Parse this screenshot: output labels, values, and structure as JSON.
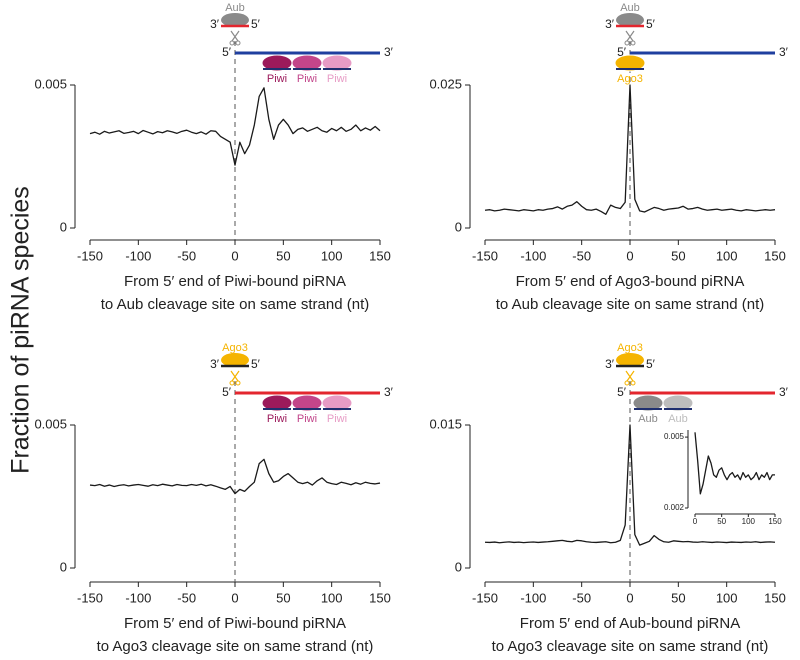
{
  "y_label": "Fraction of piRNA species",
  "chart_data": [
    {
      "type": "line",
      "color": "#1a1a1a",
      "xlabel": [
        "From 5′ end of Piwi-bound piRNA",
        "to Aub cleavage site on same strand (nt)"
      ],
      "diagram": {
        "guide": "Aub",
        "guide_color": "#8a8a8a",
        "guide_rna_color": "#e3262e",
        "guide_ends": [
          "3′",
          "5′"
        ],
        "target_ends": [
          "5′",
          "3′"
        ],
        "strand_color": "#1f3f9f",
        "bound": [
          "Piwi",
          "Piwi",
          "Piwi"
        ],
        "bound_colors": [
          "#9c1a5b",
          "#c2458a",
          "#e79bc5"
        ]
      },
      "x": [
        -150,
        -145,
        -140,
        -135,
        -130,
        -125,
        -120,
        -115,
        -110,
        -105,
        -100,
        -95,
        -90,
        -85,
        -80,
        -75,
        -70,
        -65,
        -60,
        -55,
        -50,
        -45,
        -40,
        -35,
        -30,
        -25,
        -20,
        -15,
        -10,
        -5,
        0,
        5,
        10,
        15,
        20,
        25,
        30,
        35,
        40,
        45,
        50,
        55,
        60,
        65,
        70,
        75,
        80,
        85,
        90,
        95,
        100,
        105,
        110,
        115,
        120,
        125,
        130,
        135,
        140,
        145,
        150
      ],
      "values": [
        0.0033,
        0.00335,
        0.00328,
        0.00338,
        0.00332,
        0.00336,
        0.0034,
        0.00331,
        0.00334,
        0.00338,
        0.0033,
        0.00341,
        0.00335,
        0.00329,
        0.00337,
        0.00333,
        0.0034,
        0.00336,
        0.00331,
        0.00338,
        0.00342,
        0.00335,
        0.0033,
        0.00336,
        0.00328,
        0.0034,
        0.00338,
        0.0032,
        0.0031,
        0.003,
        0.0022,
        0.003,
        0.0026,
        0.0029,
        0.0036,
        0.0046,
        0.0049,
        0.0038,
        0.0031,
        0.0036,
        0.0038,
        0.0036,
        0.0033,
        0.00345,
        0.0035,
        0.00338,
        0.00345,
        0.00352,
        0.0034,
        0.00335,
        0.00348,
        0.0034,
        0.00352,
        0.00338,
        0.00345,
        0.0036,
        0.0034,
        0.0035,
        0.00342,
        0.00355,
        0.0034
      ],
      "xlim": [
        -150,
        150
      ],
      "xticks": [
        -150,
        -100,
        -50,
        0,
        50,
        100,
        150
      ],
      "ylim": [
        0,
        0.005
      ],
      "yticks": [
        0,
        0.005
      ]
    },
    {
      "type": "line",
      "color": "#1a1a1a",
      "xlabel": [
        "From 5′ end of Ago3-bound piRNA",
        "to Aub cleavage site on same strand (nt)"
      ],
      "diagram": {
        "guide": "Aub",
        "guide_color": "#8a8a8a",
        "guide_rna_color": "#e3262e",
        "guide_ends": [
          "3′",
          "5′"
        ],
        "target_ends": [
          "5′",
          "3′"
        ],
        "strand_color": "#1f3f9f",
        "bound": [
          "Ago3"
        ],
        "bound_colors": [
          "#f5b400"
        ]
      },
      "x": [
        -150,
        -145,
        -140,
        -135,
        -130,
        -125,
        -120,
        -115,
        -110,
        -105,
        -100,
        -95,
        -90,
        -85,
        -80,
        -75,
        -70,
        -65,
        -60,
        -55,
        -50,
        -45,
        -40,
        -35,
        -30,
        -25,
        -20,
        -15,
        -10,
        -5,
        0,
        5,
        10,
        15,
        20,
        25,
        30,
        35,
        40,
        45,
        50,
        55,
        60,
        65,
        70,
        75,
        80,
        85,
        90,
        95,
        100,
        105,
        110,
        115,
        120,
        125,
        130,
        135,
        140,
        145,
        150
      ],
      "values": [
        0.0031,
        0.0032,
        0.003,
        0.0031,
        0.0033,
        0.0032,
        0.0031,
        0.003,
        0.0032,
        0.0031,
        0.003,
        0.0032,
        0.0031,
        0.0033,
        0.0034,
        0.0037,
        0.0033,
        0.0038,
        0.004,
        0.0046,
        0.0038,
        0.0032,
        0.0031,
        0.0033,
        0.0029,
        0.0024,
        0.004,
        0.0036,
        0.0034,
        0.0045,
        0.025,
        0.005,
        0.003,
        0.0028,
        0.0032,
        0.0036,
        0.0034,
        0.0031,
        0.0033,
        0.0034,
        0.0035,
        0.0038,
        0.0033,
        0.0034,
        0.0036,
        0.0033,
        0.0031,
        0.0032,
        0.0033,
        0.0031,
        0.0032,
        0.0033,
        0.0031,
        0.003,
        0.0032,
        0.0031,
        0.003,
        0.0031,
        0.0032,
        0.0031,
        0.0032
      ],
      "xlim": [
        -150,
        150
      ],
      "xticks": [
        -150,
        -100,
        -50,
        0,
        50,
        100,
        150
      ],
      "ylim": [
        0,
        0.025
      ],
      "yticks": [
        0,
        0.025
      ]
    },
    {
      "type": "line",
      "color": "#1a1a1a",
      "xlabel": [
        "From 5′ end of Piwi-bound piRNA",
        "to Ago3 cleavage site on same strand (nt)"
      ],
      "diagram": {
        "guide": "Ago3",
        "guide_color": "#f5b400",
        "guide_rna_color": "#222222",
        "guide_ends": [
          "3′",
          "5′"
        ],
        "target_ends": [
          "5′",
          "3′"
        ],
        "strand_color": "#e3262e",
        "bound": [
          "Piwi",
          "Piwi",
          "Piwi"
        ],
        "bound_colors": [
          "#9c1a5b",
          "#c2458a",
          "#e79bc5"
        ]
      },
      "x": [
        -150,
        -145,
        -140,
        -135,
        -130,
        -125,
        -120,
        -115,
        -110,
        -105,
        -100,
        -95,
        -90,
        -85,
        -80,
        -75,
        -70,
        -65,
        -60,
        -55,
        -50,
        -45,
        -40,
        -35,
        -30,
        -25,
        -20,
        -15,
        -10,
        -5,
        0,
        5,
        10,
        15,
        20,
        25,
        30,
        35,
        40,
        45,
        50,
        55,
        60,
        65,
        70,
        75,
        80,
        85,
        90,
        95,
        100,
        105,
        110,
        115,
        120,
        125,
        130,
        135,
        140,
        145,
        150
      ],
      "values": [
        0.0029,
        0.00288,
        0.00292,
        0.00286,
        0.0029,
        0.00285,
        0.00289,
        0.00291,
        0.00287,
        0.0029,
        0.00292,
        0.00289,
        0.00286,
        0.00291,
        0.00288,
        0.00293,
        0.0029,
        0.00287,
        0.00292,
        0.00289,
        0.00288,
        0.00292,
        0.00289,
        0.00293,
        0.00287,
        0.00291,
        0.00286,
        0.0028,
        0.00275,
        0.00285,
        0.0026,
        0.00275,
        0.00268,
        0.00285,
        0.003,
        0.00365,
        0.0038,
        0.0033,
        0.003,
        0.00305,
        0.0032,
        0.0033,
        0.00315,
        0.003,
        0.00295,
        0.003,
        0.0029,
        0.00305,
        0.00315,
        0.003,
        0.00295,
        0.00292,
        0.003,
        0.00296,
        0.00291,
        0.00298,
        0.00293,
        0.003,
        0.00296,
        0.00294,
        0.00297
      ],
      "xlim": [
        -150,
        150
      ],
      "xticks": [
        -150,
        -100,
        -50,
        0,
        50,
        100,
        150
      ],
      "ylim": [
        0,
        0.005
      ],
      "yticks": [
        0,
        0.005
      ]
    },
    {
      "type": "line",
      "color": "#1a1a1a",
      "xlabel": [
        "From 5′ end of Aub-bound piRNA",
        "to Ago3 cleavage site on same strand (nt)"
      ],
      "diagram": {
        "guide": "Ago3",
        "guide_color": "#f5b400",
        "guide_rna_color": "#222222",
        "guide_ends": [
          "3′",
          "5′"
        ],
        "target_ends": [
          "5′",
          "3′"
        ],
        "strand_color": "#e3262e",
        "bound": [
          "Aub",
          "Aub"
        ],
        "bound_colors": [
          "#8a8a8a",
          "#bdbdbd"
        ]
      },
      "x": [
        -150,
        -145,
        -140,
        -135,
        -130,
        -125,
        -120,
        -115,
        -110,
        -105,
        -100,
        -95,
        -90,
        -85,
        -80,
        -75,
        -70,
        -65,
        -60,
        -55,
        -50,
        -45,
        -40,
        -35,
        -30,
        -25,
        -20,
        -15,
        -10,
        -5,
        0,
        5,
        10,
        15,
        20,
        25,
        30,
        35,
        40,
        45,
        50,
        55,
        60,
        65,
        70,
        75,
        80,
        85,
        90,
        95,
        100,
        105,
        110,
        115,
        120,
        125,
        130,
        135,
        140,
        145,
        150
      ],
      "values": [
        0.0027,
        0.00268,
        0.00272,
        0.00265,
        0.0027,
        0.00274,
        0.00268,
        0.00271,
        0.00266,
        0.0027,
        0.00273,
        0.00268,
        0.00272,
        0.00275,
        0.0028,
        0.00285,
        0.0029,
        0.0028,
        0.00275,
        0.0029,
        0.00285,
        0.00275,
        0.0027,
        0.00268,
        0.00272,
        0.00275,
        0.00265,
        0.0027,
        0.0029,
        0.0045,
        0.015,
        0.0035,
        0.0024,
        0.0026,
        0.0028,
        0.0034,
        0.003,
        0.00275,
        0.0027,
        0.00285,
        0.0028,
        0.00275,
        0.00278,
        0.00272,
        0.0027,
        0.00275,
        0.00271,
        0.00268,
        0.00273,
        0.0027,
        0.00267,
        0.00272,
        0.0027,
        0.00268,
        0.00273,
        0.0027,
        0.00275,
        0.00268,
        0.00272,
        0.00274,
        0.0027
      ],
      "xlim": [
        -150,
        150
      ],
      "xticks": [
        -150,
        -100,
        -50,
        0,
        50,
        100,
        150
      ],
      "ylim": [
        0,
        0.015
      ],
      "yticks": [
        0,
        0.015
      ]
    },
    {
      "type": "line",
      "color": "#1a1a1a",
      "x": [
        0,
        5,
        10,
        15,
        20,
        25,
        30,
        35,
        40,
        45,
        50,
        55,
        60,
        65,
        70,
        75,
        80,
        85,
        90,
        95,
        100,
        105,
        110,
        115,
        120,
        125,
        130,
        135,
        140,
        145,
        150
      ],
      "values": [
        0.0052,
        0.004,
        0.0026,
        0.003,
        0.0036,
        0.0042,
        0.0039,
        0.0034,
        0.0033,
        0.0036,
        0.0037,
        0.0034,
        0.0032,
        0.0034,
        0.0035,
        0.0033,
        0.0034,
        0.0032,
        0.0035,
        0.0033,
        0.0034,
        0.0032,
        0.0033,
        0.0035,
        0.0032,
        0.0034,
        0.0033,
        0.0035,
        0.0032,
        0.0034,
        0.0034
      ],
      "xlim": [
        0,
        150
      ],
      "xticks": [
        0,
        50,
        100,
        150
      ],
      "ylim": [
        0.002,
        0.0053
      ],
      "yticks": [
        0.002,
        0.005
      ]
    }
  ]
}
